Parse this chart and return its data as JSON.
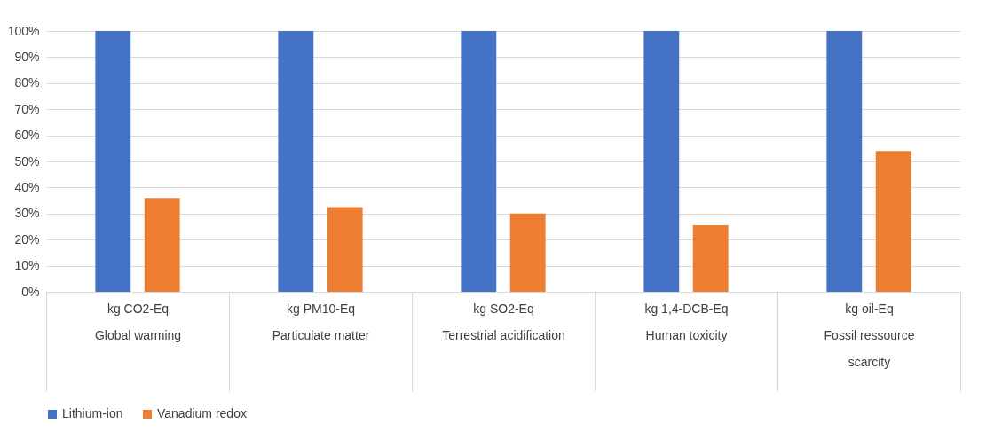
{
  "chart_data": {
    "type": "bar",
    "categories": [
      "kg CO2-Eq\nGlobal warming",
      "kg PM10-Eq\nParticulate matter",
      "kg SO2-Eq\nTerrestrial acidification",
      "kg 1,4-DCB-Eq\nHuman toxicity",
      "kg oil-Eq\nFossil ressource\nscarcity"
    ],
    "series": [
      {
        "name": "Lithium-ion",
        "color": "#4472c4",
        "values": [
          100,
          100,
          100,
          100,
          100
        ]
      },
      {
        "name": "Vanadium redox",
        "color": "#ed7d31",
        "values": [
          36,
          32.5,
          30,
          25.5,
          54
        ]
      }
    ],
    "ylim": [
      0,
      100
    ],
    "yticks": [
      {
        "value": 0,
        "label": "0%"
      },
      {
        "value": 10,
        "label": "10%"
      },
      {
        "value": 20,
        "label": "20%"
      },
      {
        "value": 30,
        "label": "30%"
      },
      {
        "value": 40,
        "label": "40%"
      },
      {
        "value": 50,
        "label": "50%"
      },
      {
        "value": 60,
        "label": "60%"
      },
      {
        "value": 70,
        "label": "70%"
      },
      {
        "value": 80,
        "label": "80%"
      },
      {
        "value": 90,
        "label": "90%"
      },
      {
        "value": 100,
        "label": "100%"
      }
    ],
    "grid": "y",
    "legend": "bottom"
  }
}
